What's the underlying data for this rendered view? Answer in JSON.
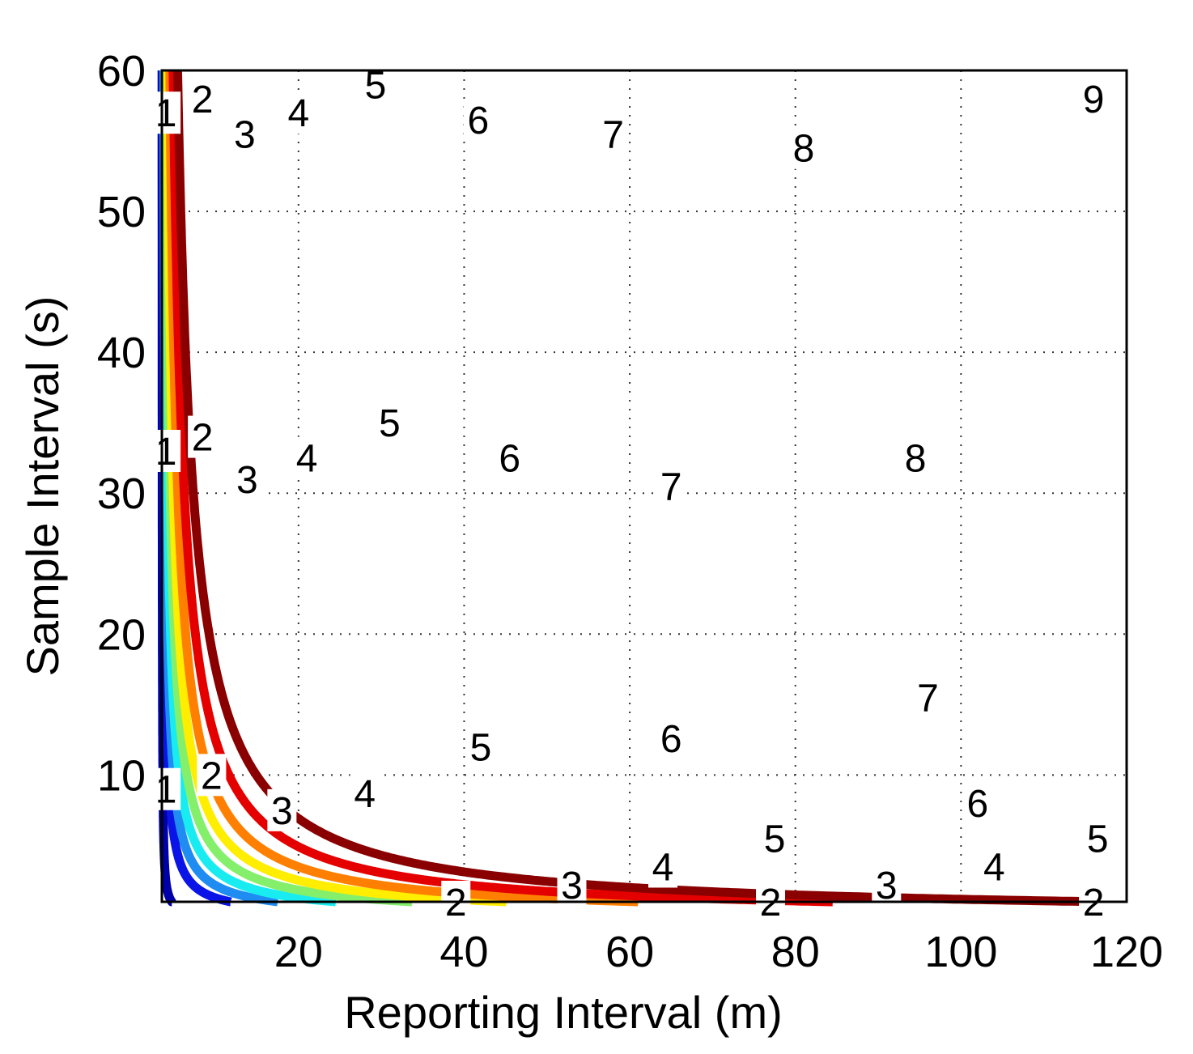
{
  "chart_data": {
    "type": "contour",
    "xlabel": "Reporting Interval (m)",
    "ylabel": "Sample Interval (s)",
    "xlim": [
      3.5,
      120
    ],
    "ylim": [
      1,
      60
    ],
    "x_ticks": [
      20,
      40,
      60,
      80,
      100,
      120
    ],
    "y_ticks": [
      10,
      20,
      30,
      40,
      50,
      60
    ],
    "grid": true,
    "levels": [
      {
        "level": 1,
        "label": "1",
        "color": "#0000a8",
        "k": 1.2,
        "labels": [
          [
            4.0,
            57.0
          ],
          [
            4.0,
            33.0
          ],
          [
            4.0,
            9.0
          ]
        ]
      },
      {
        "level": 2,
        "label": "2",
        "color": "#0a14e6",
        "k": 8.3,
        "labels": [
          [
            8.4,
            58.0
          ],
          [
            8.4,
            34.0
          ],
          [
            9.5,
            10.0
          ],
          [
            39.0,
            1.0
          ],
          [
            77.0,
            1.0
          ],
          [
            116.0,
            1.0
          ]
        ]
      },
      {
        "level": 3,
        "label": "3",
        "color": "#1e8cf0",
        "k": 14.0,
        "labels": [
          [
            13.5,
            55.5
          ],
          [
            13.8,
            31.0
          ],
          [
            18.0,
            7.5
          ],
          [
            53.0,
            2.2
          ],
          [
            91.0,
            2.2
          ]
        ]
      },
      {
        "level": 4,
        "label": "4",
        "color": "#19ecf0",
        "k": 21.0,
        "labels": [
          [
            20.0,
            57.0
          ],
          [
            21.0,
            32.5
          ],
          [
            28.0,
            8.7
          ],
          [
            64.0,
            3.5
          ],
          [
            104.0,
            3.5
          ]
        ]
      },
      {
        "level": 5,
        "label": "5",
        "color": "#84ef6b",
        "k": 30.2,
        "labels": [
          [
            29.3,
            59.0
          ],
          [
            31.0,
            35.0
          ],
          [
            42.0,
            12.0
          ],
          [
            77.5,
            5.5
          ],
          [
            116.5,
            5.5
          ]
        ]
      },
      {
        "level": 6,
        "label": "6",
        "color": "#ffee00",
        "k": 41.6,
        "labels": [
          [
            41.7,
            56.5
          ],
          [
            45.5,
            32.5
          ],
          [
            65.0,
            12.6
          ],
          [
            102.0,
            8.0
          ]
        ]
      },
      {
        "level": 7,
        "label": "7",
        "color": "#ff8000",
        "k": 57.5,
        "labels": [
          [
            58.0,
            55.5
          ],
          [
            65.0,
            30.5
          ],
          [
            96.0,
            15.5
          ]
        ]
      },
      {
        "level": 8,
        "label": "8",
        "color": "#e50000",
        "k": 81.0,
        "labels": [
          [
            81.0,
            54.5
          ],
          [
            94.5,
            32.5
          ]
        ]
      },
      {
        "level": 9,
        "label": "9",
        "color": "#8a0000",
        "k": 114.0,
        "labels": [
          [
            116.0,
            58.0
          ]
        ]
      }
    ]
  }
}
